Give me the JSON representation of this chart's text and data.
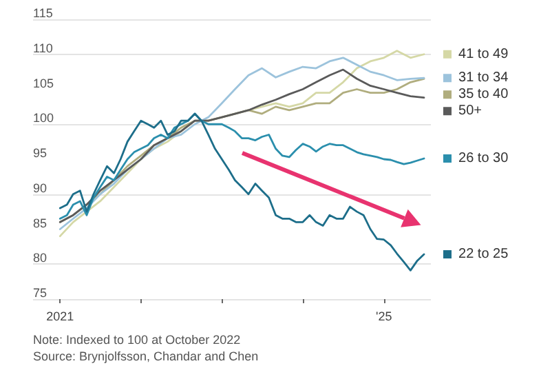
{
  "chart_data": {
    "type": "line",
    "annotations": [
      "Note: Indexed to 100 at October 2022",
      "Source: Brynjolfsson, Chandar and Chen"
    ],
    "x": [
      "2021-01",
      "2021-02",
      "2021-03",
      "2021-04",
      "2021-05",
      "2021-06",
      "2021-07",
      "2021-08",
      "2021-09",
      "2021-10",
      "2021-11",
      "2021-12",
      "2022-01",
      "2022-02",
      "2022-03",
      "2022-04",
      "2022-05",
      "2022-06",
      "2022-07",
      "2022-08",
      "2022-09",
      "2022-10",
      "2022-11",
      "2022-12",
      "2023-01",
      "2023-02",
      "2023-03",
      "2023-04",
      "2023-05",
      "2023-06",
      "2023-07",
      "2023-08",
      "2023-09",
      "2023-10",
      "2023-11",
      "2023-12",
      "2024-01",
      "2024-02",
      "2024-03",
      "2024-04",
      "2024-05",
      "2024-06",
      "2024-07",
      "2024-08",
      "2024-09",
      "2024-10",
      "2024-11",
      "2024-12",
      "2025-01",
      "2025-02",
      "2025-03",
      "2025-04",
      "2025-05",
      "2025-06",
      "2025-07"
    ],
    "series": [
      {
        "name": "41 to 49",
        "color": "#d5d8a6",
        "x": [
          "2021-01",
          "2021-03",
          "2021-05",
          "2021-07",
          "2021-09",
          "2021-11",
          "2022-01",
          "2022-03",
          "2022-05",
          "2022-07",
          "2022-09",
          "2022-11",
          "2023-01",
          "2023-03",
          "2023-05",
          "2023-07",
          "2023-09",
          "2023-11",
          "2024-01",
          "2024-03",
          "2024-05",
          "2024-07",
          "2024-09",
          "2024-11",
          "2025-01",
          "2025-03",
          "2025-05",
          "2025-07"
        ],
        "values": [
          84,
          86,
          87.5,
          89,
          91,
          93,
          95,
          96.5,
          97.5,
          99,
          100.5,
          100.5,
          101,
          101.5,
          102,
          102.5,
          103,
          102.5,
          103,
          104.5,
          104.5,
          106,
          108,
          109,
          109.5,
          110.5,
          109.5,
          110
        ]
      },
      {
        "name": "35 to 40",
        "color": "#b0ad7e",
        "x": [
          "2021-01",
          "2021-03",
          "2021-05",
          "2021-07",
          "2021-09",
          "2021-11",
          "2022-01",
          "2022-03",
          "2022-05",
          "2022-07",
          "2022-09",
          "2022-11",
          "2023-01",
          "2023-03",
          "2023-05",
          "2023-07",
          "2023-09",
          "2023-11",
          "2024-01",
          "2024-03",
          "2024-05",
          "2024-07",
          "2024-09",
          "2024-11",
          "2025-01",
          "2025-03",
          "2025-05",
          "2025-07"
        ],
        "values": [
          86,
          87,
          88.5,
          90,
          92,
          94,
          95.5,
          97,
          98,
          99.5,
          100.5,
          100.5,
          101,
          101.5,
          102,
          101.5,
          102.5,
          102,
          102.5,
          103,
          103,
          104.5,
          105,
          104.5,
          104.5,
          105,
          106,
          106.5
        ]
      },
      {
        "name": "31 to 34",
        "color": "#9cc3dc",
        "x": [
          "2021-01",
          "2021-03",
          "2021-05",
          "2021-07",
          "2021-09",
          "2021-11",
          "2022-01",
          "2022-03",
          "2022-05",
          "2022-07",
          "2022-09",
          "2022-11",
          "2023-01",
          "2023-03",
          "2023-05",
          "2023-07",
          "2023-09",
          "2023-11",
          "2024-01",
          "2024-03",
          "2024-05",
          "2024-07",
          "2024-09",
          "2024-11",
          "2025-01",
          "2025-03",
          "2025-05",
          "2025-07"
        ],
        "values": [
          85,
          86.5,
          88,
          90,
          91.5,
          93.5,
          95,
          96.5,
          98,
          98.5,
          100,
          101,
          103,
          105,
          107,
          108,
          106.7,
          107.5,
          108.2,
          108,
          109,
          109.5,
          108.5,
          107.5,
          107,
          106.3,
          106.5,
          106.6
        ]
      },
      {
        "name": "50+",
        "color": "#5a5a5a",
        "x": [
          "2021-01",
          "2021-03",
          "2021-05",
          "2021-07",
          "2021-09",
          "2021-11",
          "2022-01",
          "2022-03",
          "2022-05",
          "2022-07",
          "2022-09",
          "2022-11",
          "2023-01",
          "2023-03",
          "2023-05",
          "2023-07",
          "2023-09",
          "2023-11",
          "2024-01",
          "2024-03",
          "2024-05",
          "2024-07",
          "2024-09",
          "2024-11",
          "2025-01",
          "2025-03",
          "2025-05",
          "2025-07"
        ],
        "values": [
          86,
          87,
          88.5,
          90.5,
          92,
          93.5,
          95,
          97,
          98,
          99,
          100.5,
          100.5,
          101,
          101.5,
          102,
          102.8,
          103.5,
          104.3,
          105,
          106,
          107,
          107.8,
          106.5,
          105.5,
          105,
          104.5,
          104,
          103.8
        ]
      },
      {
        "name": "26 to 30",
        "color": "#2b8fad",
        "values": [
          86.5,
          87,
          88.5,
          89,
          87,
          89.5,
          91,
          92.5,
          92,
          93.5,
          95,
          96,
          96.5,
          97,
          98,
          98.5,
          98,
          99.5,
          100,
          100.5,
          101.5,
          100.5,
          100,
          100,
          100,
          99.5,
          99,
          98,
          98,
          97.7,
          98.2,
          98.5,
          96.5,
          95.5,
          95.3,
          96.3,
          97.2,
          96.8,
          96.1,
          96.8,
          97.2,
          97,
          97,
          96.5,
          96,
          95.7,
          95.5,
          95.3,
          95,
          94.9,
          94.6,
          94.3,
          94.5,
          94.8,
          95.1
        ]
      },
      {
        "name": "22 to 25",
        "color": "#1d6e8a",
        "values": [
          88,
          88.5,
          90,
          90.5,
          87.5,
          90,
          92,
          94,
          93,
          95,
          97.5,
          99,
          100.5,
          100,
          99.5,
          100.5,
          98.5,
          99,
          100.5,
          100.5,
          101.5,
          100.5,
          98.5,
          96.5,
          95,
          93.5,
          92,
          91,
          90,
          91.5,
          90.5,
          89.5,
          87,
          86.5,
          86.5,
          86,
          86,
          87,
          86,
          85.5,
          87,
          86.5,
          86.5,
          88.2,
          87.5,
          87,
          85,
          83.6,
          83.5,
          82.7,
          81.5,
          80.3,
          79.1,
          80.5,
          81.4
        ]
      }
    ],
    "xlim": [
      "2020-09",
      "2025-08"
    ],
    "xticks": [
      {
        "value": "2021-01",
        "label": "2021"
      },
      {
        "value": "2022-01",
        "label": null
      },
      {
        "value": "2023-01",
        "label": null
      },
      {
        "value": "2024-01",
        "label": null
      },
      {
        "value": "2025-01",
        "label": "'25"
      }
    ],
    "ylim": [
      75,
      115
    ],
    "yticks": [
      75,
      80,
      85,
      90,
      95,
      100,
      105,
      110,
      115
    ],
    "grid": "y",
    "legend": "right",
    "marker": "none",
    "line_style": "solid"
  }
}
